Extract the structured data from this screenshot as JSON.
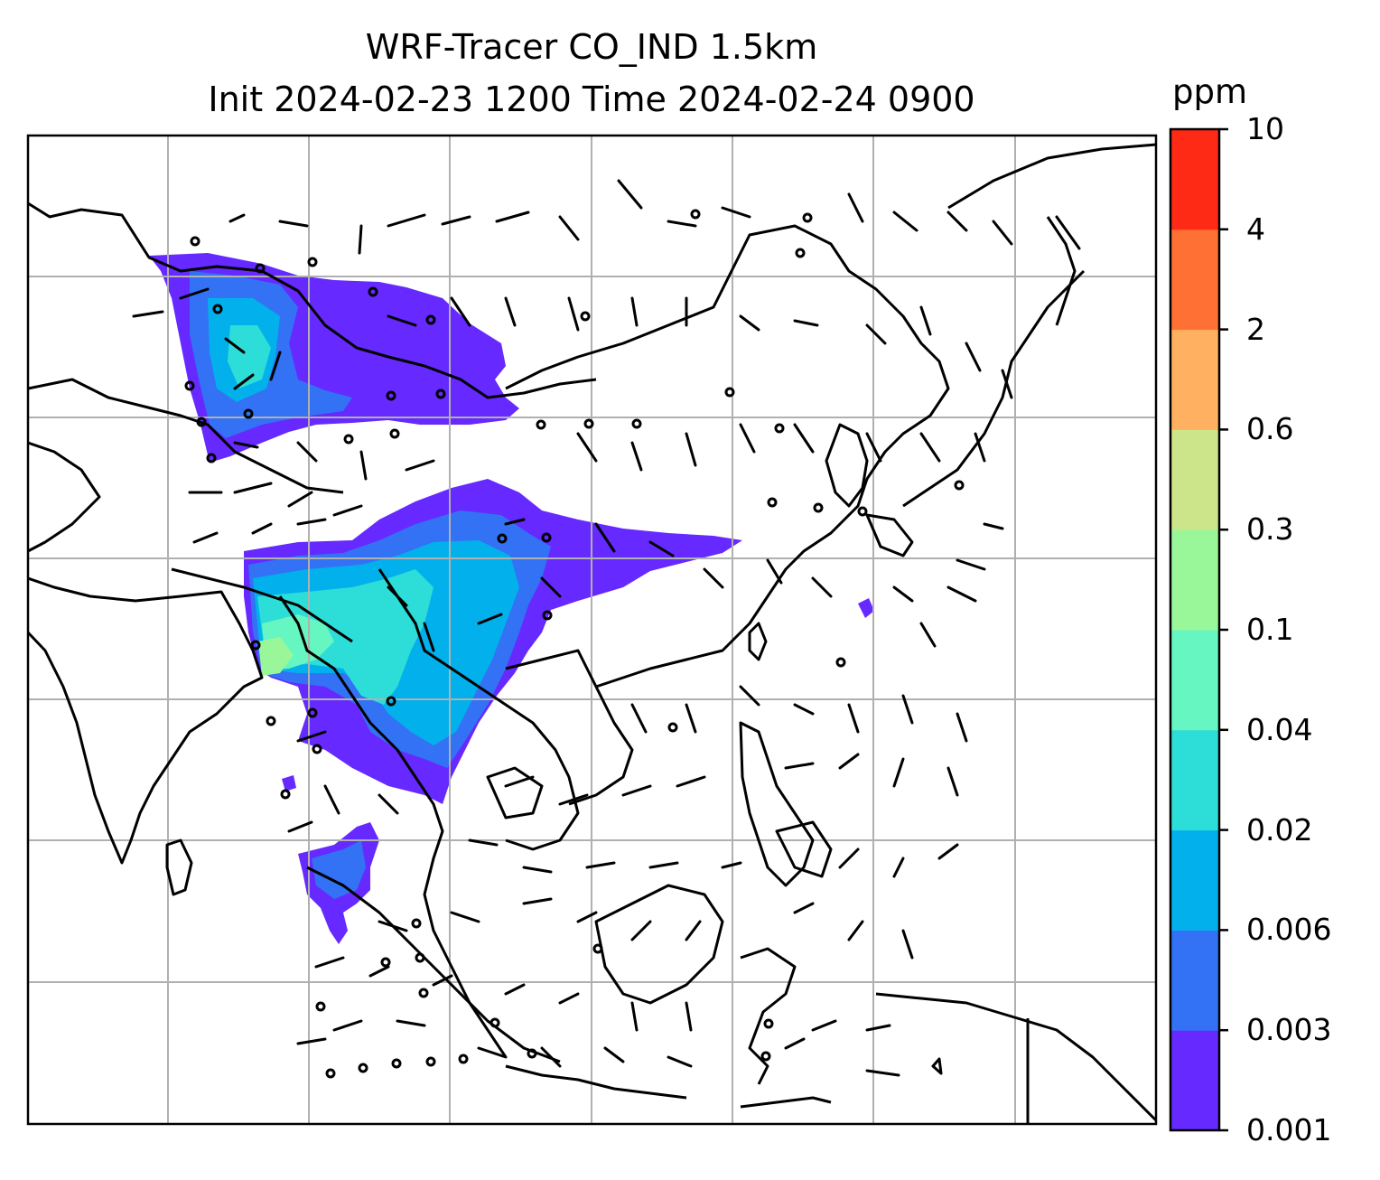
{
  "title": {
    "line1": "WRF-Tracer CO_IND 1.5km",
    "line2": "Init 2024-02-23 1200 Time 2024-02-24 0900"
  },
  "colorbar": {
    "unit": "ppm",
    "levels": [
      "0.001",
      "0.003",
      "0.006",
      "0.02",
      "0.04",
      "0.1",
      "0.3",
      "0.6",
      "2",
      "4",
      "10"
    ],
    "colors": [
      "#6629ff",
      "#3372f5",
      "#02b1ec",
      "#2dddd8",
      "#66f6c1",
      "#99f79a",
      "#cde58a",
      "#ffb161",
      "#ff7035",
      "#ff2a16"
    ]
  },
  "map": {
    "coastline_color": "#000000",
    "grid_color": "#b0b0b0",
    "frame_color": "#000000"
  }
}
